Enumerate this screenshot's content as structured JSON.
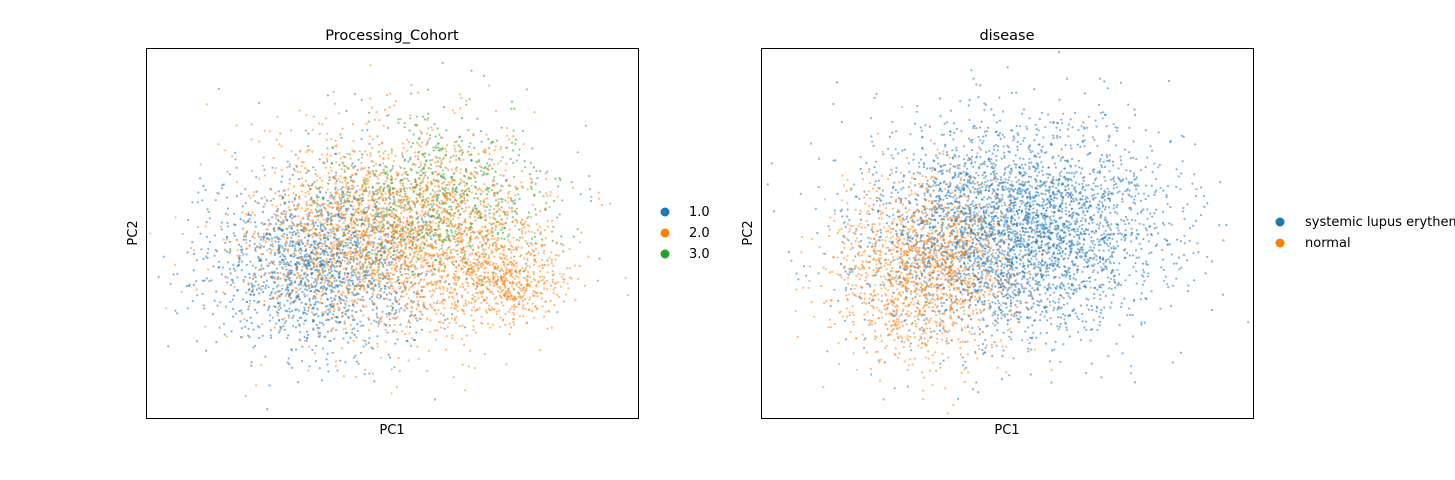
{
  "chart_data": [
    {
      "type": "scatter",
      "title": "Processing_Cohort",
      "xlabel": "PC1",
      "ylabel": "PC2",
      "grid": false,
      "ticks": false,
      "legend_position": "right",
      "series": [
        {
          "name": "1.0",
          "color": "#1f77b4"
        },
        {
          "name": "2.0",
          "color": "#ff7f0e"
        },
        {
          "name": "3.0",
          "color": "#2ca02c"
        }
      ]
    },
    {
      "type": "scatter",
      "title": "disease",
      "xlabel": "PC1",
      "ylabel": "PC2",
      "grid": false,
      "ticks": false,
      "legend_position": "right",
      "series": [
        {
          "name": "systemic lupus erythematosus",
          "color": "#1f77b4"
        },
        {
          "name": "normal",
          "color": "#ff7f0e"
        }
      ]
    }
  ]
}
